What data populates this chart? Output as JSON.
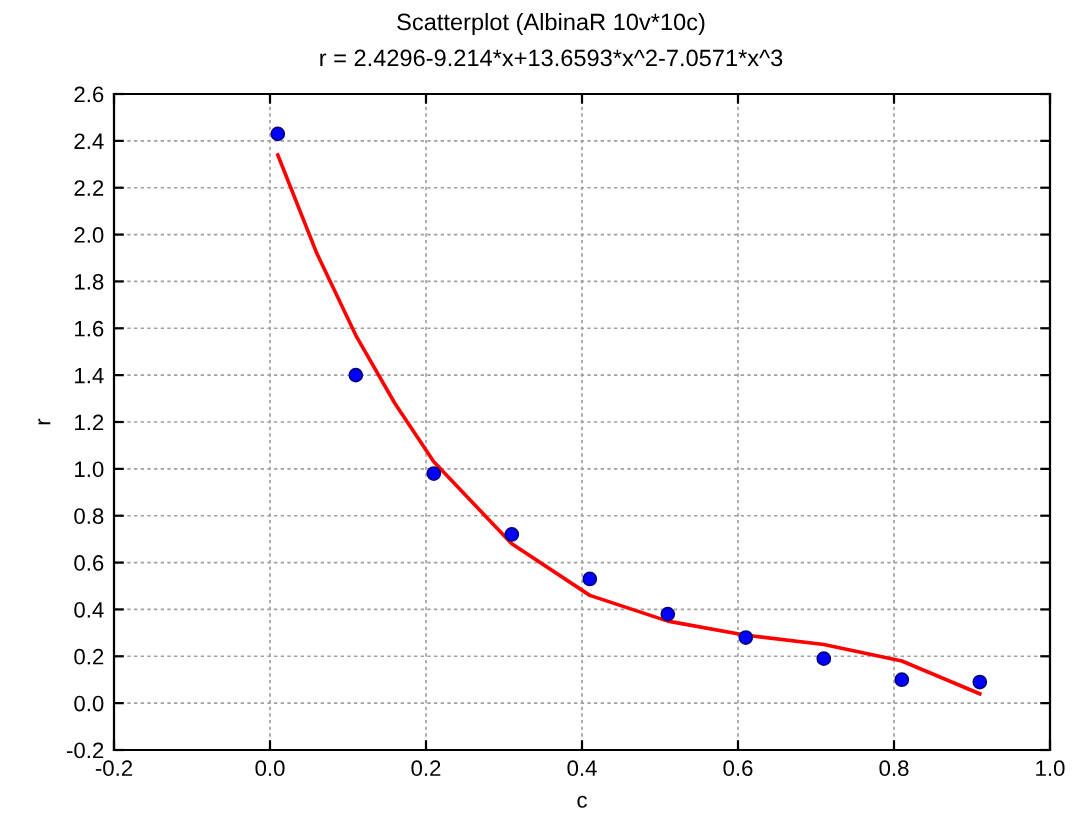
{
  "chart_data": {
    "type": "scatter",
    "title": "Scatterplot (AlbinaR 10v*10c)",
    "subtitle": "r = 2.4296-9.214*x+13.6593*x^2-7.0571*x^3",
    "xlabel": "c",
    "ylabel": "r",
    "x": [
      0.01,
      0.11,
      0.21,
      0.31,
      0.41,
      0.51,
      0.61,
      0.71,
      0.81,
      0.91
    ],
    "series": [
      {
        "color": "#0000ff",
        "marker": "circle",
        "values": [
          2.43,
          1.4,
          0.98,
          0.72,
          0.53,
          0.38,
          0.28,
          0.19,
          0.1,
          0.09
        ]
      },
      {
        "type": "line",
        "color": "#ff0000",
        "line_style": "solid",
        "marker": "none",
        "x": [
          0.01,
          0.06,
          0.11,
          0.16,
          0.21,
          0.31,
          0.41,
          0.51,
          0.61,
          0.71,
          0.81,
          0.91
        ],
        "values": [
          2.34,
          1.92,
          1.57,
          1.28,
          1.03,
          0.68,
          0.46,
          0.35,
          0.29,
          0.25,
          0.18,
          0.04
        ]
      }
    ],
    "xlim": [
      -0.2,
      1.0
    ],
    "xticks": [
      -0.2,
      {
        "value": 0,
        "label": "0.0"
      },
      0.2,
      0.4,
      0.6,
      0.8,
      {
        "value": 1,
        "label": "1.0"
      }
    ],
    "ylim": [
      -0.2,
      2.6
    ],
    "yticks": [
      -0.2,
      {
        "value": 0,
        "label": "0.0"
      },
      0.2,
      0.4,
      0.6,
      0.8,
      {
        "value": 1,
        "label": "1.0"
      },
      1.2,
      1.4,
      1.6,
      1.8,
      {
        "value": 2,
        "label": "2.0"
      },
      2.2,
      2.4,
      2.6
    ],
    "grid": true,
    "legend": false
  }
}
